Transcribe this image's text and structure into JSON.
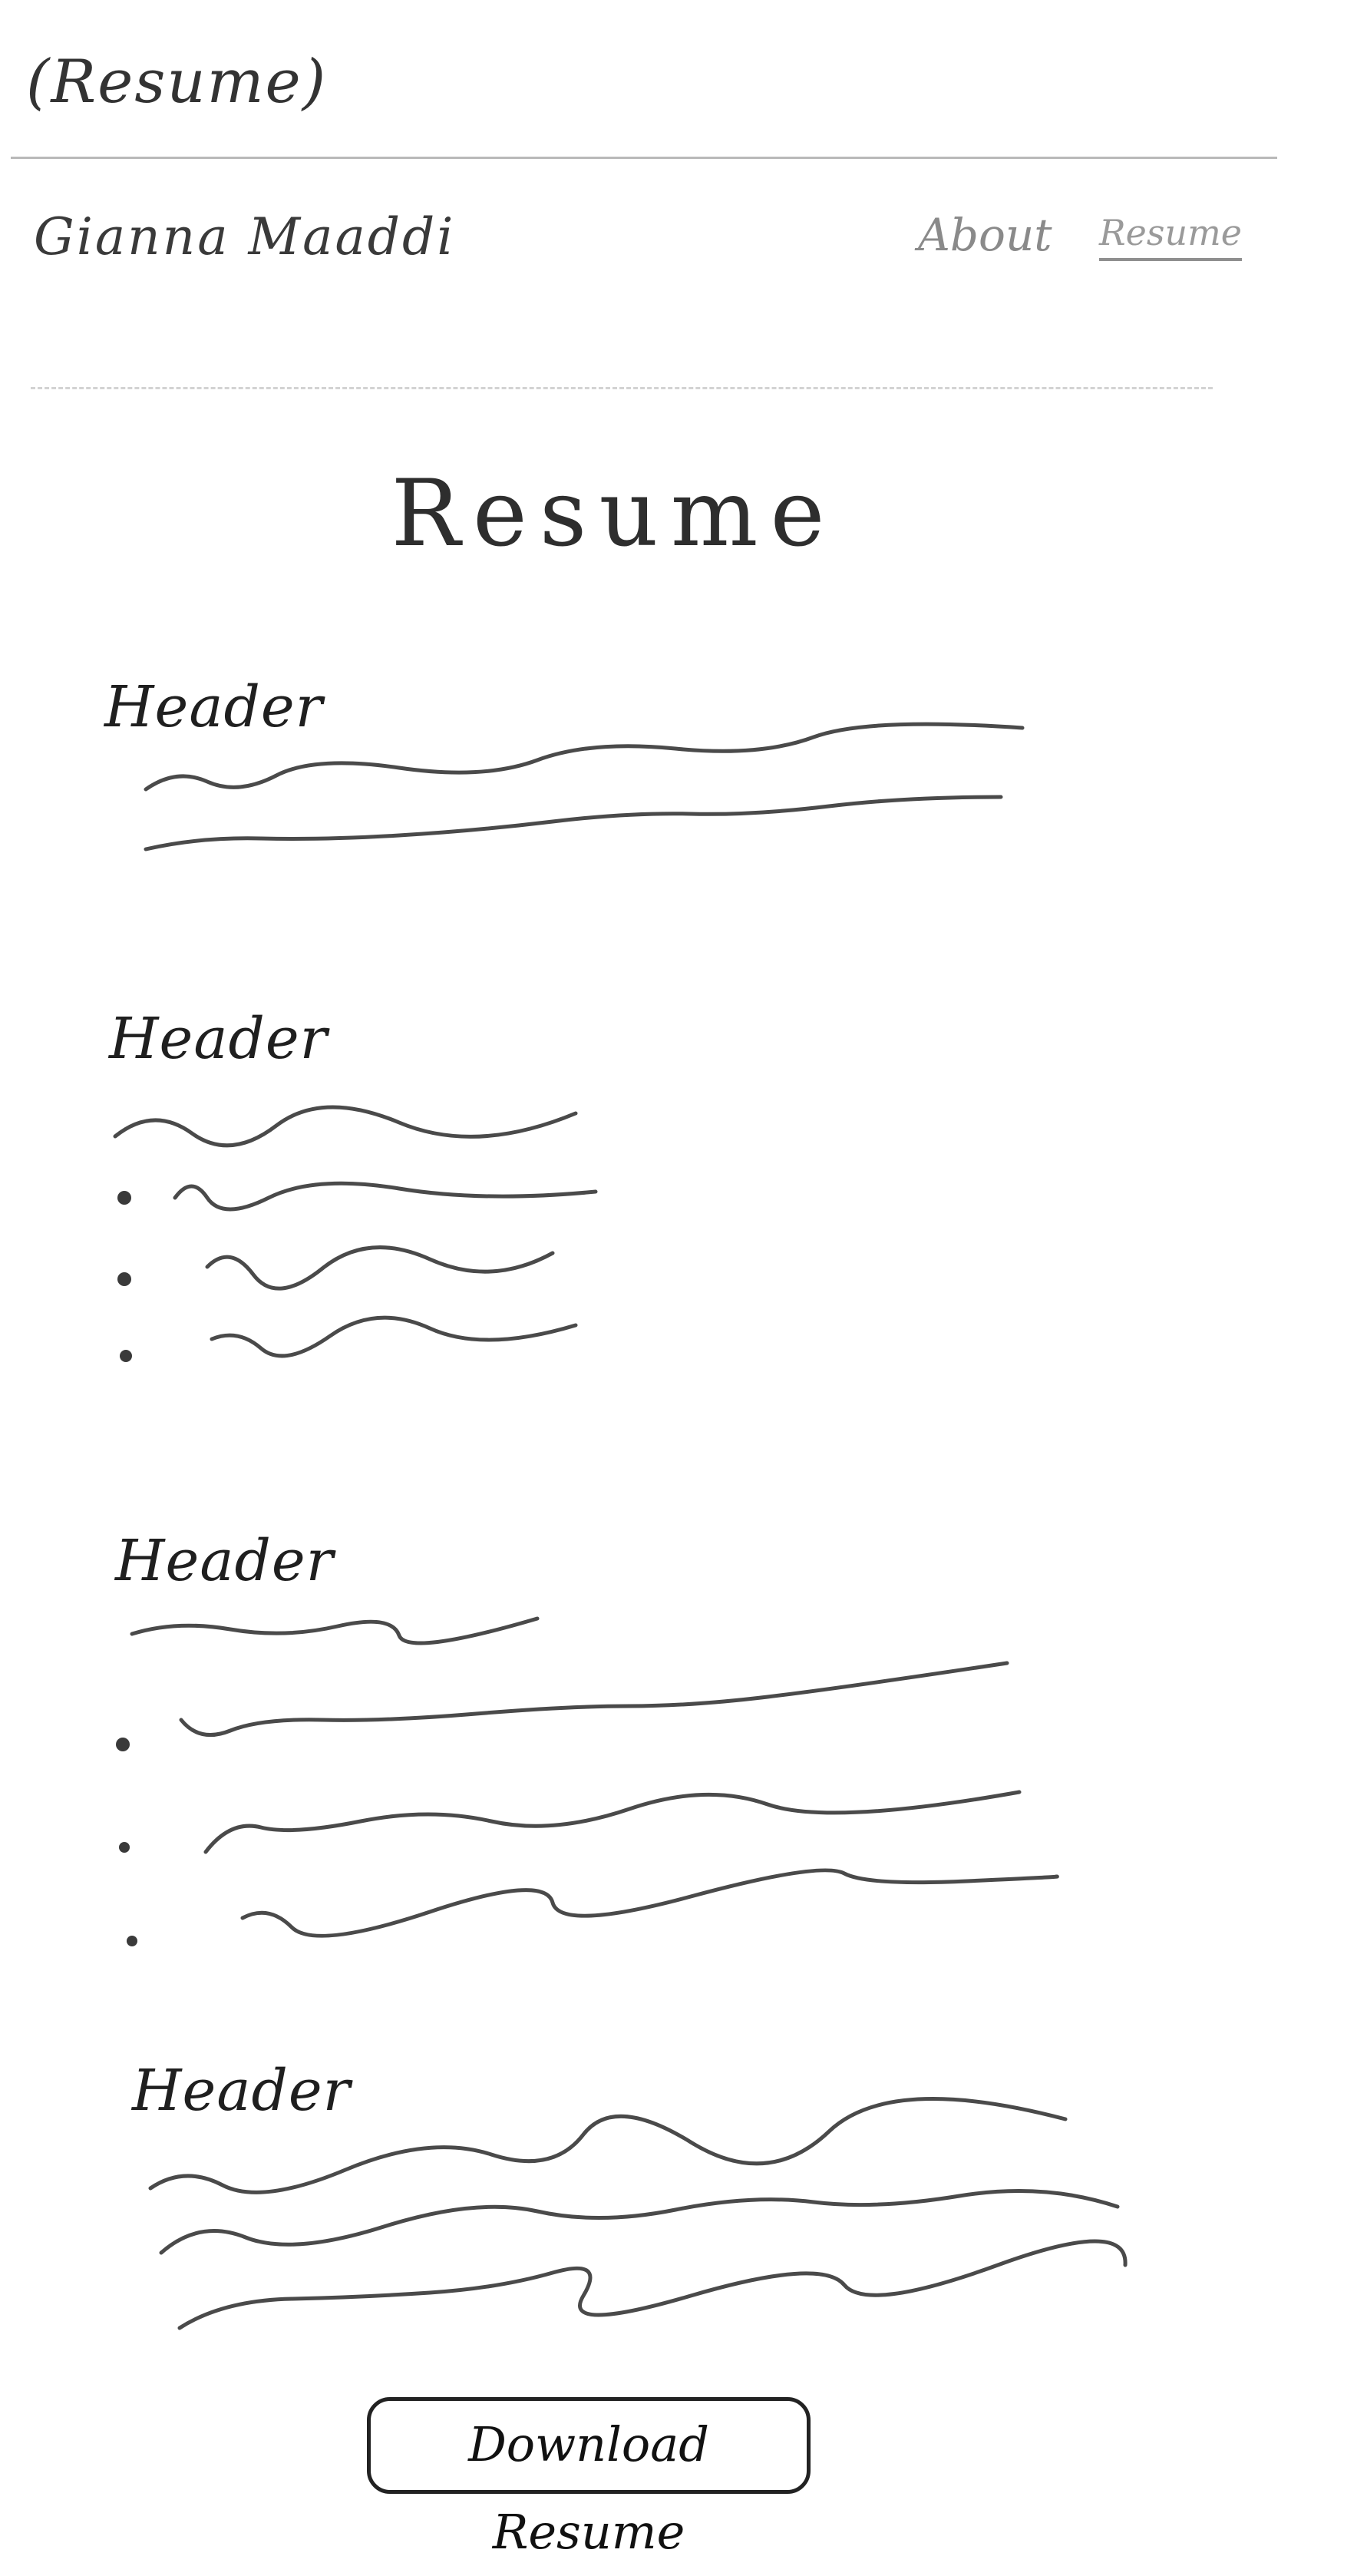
{
  "page_label": "(Resume)",
  "nav": {
    "site_name": "Gianna Maaddi",
    "links": [
      {
        "label": "About"
      },
      {
        "label": "Resume",
        "active": true
      }
    ]
  },
  "main": {
    "title": "Resume",
    "sections": [
      {
        "header": "Header",
        "kind": "paragraph",
        "lines": 2
      },
      {
        "header": "Header",
        "kind": "intro-plus-bullets",
        "bullets": 3
      },
      {
        "header": "Header",
        "kind": "intro-plus-bullets",
        "bullets": 3
      },
      {
        "header": "Header",
        "kind": "paragraph",
        "lines": 3
      }
    ],
    "download_button": "Download Resume"
  },
  "colors": {
    "ink": "#2a2a2a",
    "pencil_gray": "#8a8a8a",
    "rule": "#b9b9b9"
  }
}
